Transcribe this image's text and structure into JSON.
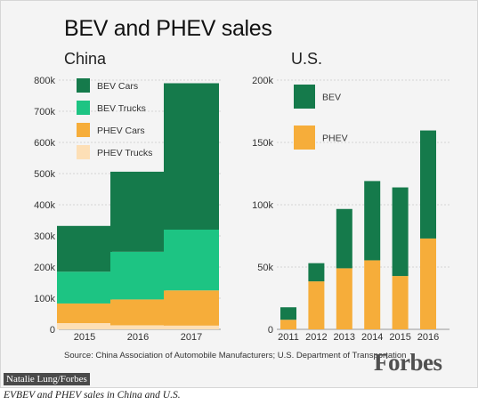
{
  "header": {
    "title": "BEV and PHEV sales"
  },
  "footer": {
    "source": "Source: China Association of Automobile Manufacturers; U.S. Department of Transportation",
    "brand": "Forbes",
    "credit": "Natalie Lung/Forbes",
    "caption": "EVBEV and PHEV sales in China and U.S."
  },
  "colors": {
    "bev_cars": "#157a4b",
    "bev_trucks": "#1dc483",
    "phev_cars": "#f6ad3a",
    "phev_trucks": "#fddfb6"
  },
  "chart_data": [
    {
      "type": "bar",
      "stacked": true,
      "subtitle": "China",
      "categories": [
        "2015",
        "2016",
        "2017"
      ],
      "ylim": [
        0,
        800000
      ],
      "yticks": [
        0,
        100000,
        200000,
        300000,
        400000,
        500000,
        600000,
        700000,
        800000
      ],
      "ytick_labels": [
        "0",
        "100k",
        "200k",
        "300k",
        "400k",
        "500k",
        "600k",
        "700k",
        "800k"
      ],
      "legend_position": "top-left",
      "series": [
        {
          "name": "PHEV Trucks",
          "color": "#fddfb6",
          "values": [
            20000,
            13000,
            12000
          ]
        },
        {
          "name": "PHEV Cars",
          "color": "#f6ad3a",
          "values": [
            63000,
            83000,
            113000
          ]
        },
        {
          "name": "BEV Trucks",
          "color": "#1dc483",
          "values": [
            102000,
            153000,
            195000
          ]
        },
        {
          "name": "BEV Cars",
          "color": "#157a4b",
          "values": [
            147000,
            257000,
            470000
          ]
        }
      ],
      "legend_order": [
        "BEV Cars",
        "BEV Trucks",
        "PHEV Cars",
        "PHEV Trucks"
      ]
    },
    {
      "type": "bar",
      "stacked": true,
      "subtitle": "U.S.",
      "categories": [
        "2011",
        "2012",
        "2013",
        "2014",
        "2015",
        "2016"
      ],
      "ylim": [
        0,
        200000
      ],
      "yticks": [
        0,
        50000,
        100000,
        150000,
        200000
      ],
      "ytick_labels": [
        "0",
        "50k",
        "100k",
        "150k",
        "200k"
      ],
      "legend_position": "top-left",
      "series": [
        {
          "name": "PHEV",
          "color": "#f6ad3a",
          "values": [
            7700,
            38500,
            49000,
            55400,
            42800,
            72900
          ]
        },
        {
          "name": "BEV",
          "color": "#157a4b",
          "values": [
            10000,
            14600,
            47600,
            63600,
            71100,
            86700
          ]
        }
      ],
      "legend_order": [
        "BEV",
        "PHEV"
      ]
    }
  ]
}
